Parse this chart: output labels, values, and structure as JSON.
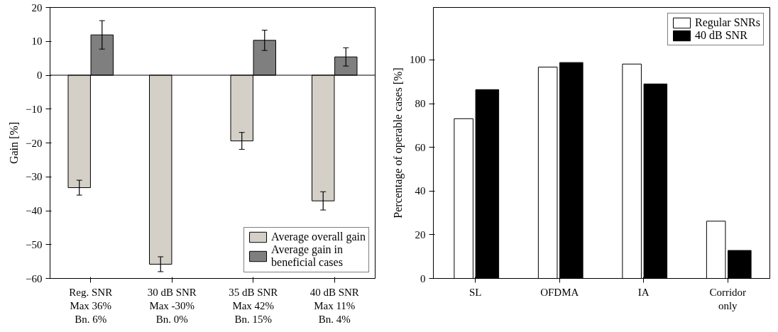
{
  "chart_data": [
    {
      "type": "bar",
      "ylabel": "Gain [%]",
      "categories": [
        "Reg. SNR\nMax 36%\nBn. 6%",
        "30 dB SNR\nMax -30%\nBn. 0%",
        "35 dB SNR\nMax 42%\nBn. 15%",
        "40 dB SNR\nMax 11%\nBn. 4%"
      ],
      "series": [
        {
          "name": "Average overall gain",
          "color": "#d4d0c8",
          "values": [
            -33.2,
            -55.8,
            -19.4,
            -37.1
          ],
          "errors": [
            2.2,
            2.2,
            2.5,
            2.7
          ]
        },
        {
          "name": "Average gain in\nbeneficial cases",
          "color": "#7f7f7f",
          "values": [
            11.9,
            null,
            10.3,
            5.4
          ],
          "errors": [
            4.2,
            null,
            3.0,
            2.7
          ]
        }
      ],
      "ylim": [
        -60,
        20
      ],
      "yticks": [
        -60,
        -50,
        -40,
        -30,
        -20,
        -10,
        0,
        10,
        20
      ],
      "legend": "bottom right",
      "grid": false,
      "ref_lines": [
        {
          "axis": "y",
          "value": 0,
          "color": "#000000"
        }
      ]
    },
    {
      "type": "bar",
      "ylabel": "Percentage of operable cases [%]",
      "categories": [
        "SL",
        "OFDMA",
        "IA",
        "Corridor\nonly"
      ],
      "series": [
        {
          "name": "Regular SNRs",
          "color": "#ffffff",
          "values": [
            73.1,
            96.7,
            98.1,
            26.2
          ]
        },
        {
          "name": "40 dB SNR",
          "color": "#000000",
          "values": [
            86.4,
            98.8,
            89.0,
            12.8
          ]
        }
      ],
      "ylim": [
        0,
        124
      ],
      "yticks": [
        0,
        20,
        40,
        60,
        80,
        100
      ],
      "legend": "top right",
      "grid": false
    }
  ]
}
